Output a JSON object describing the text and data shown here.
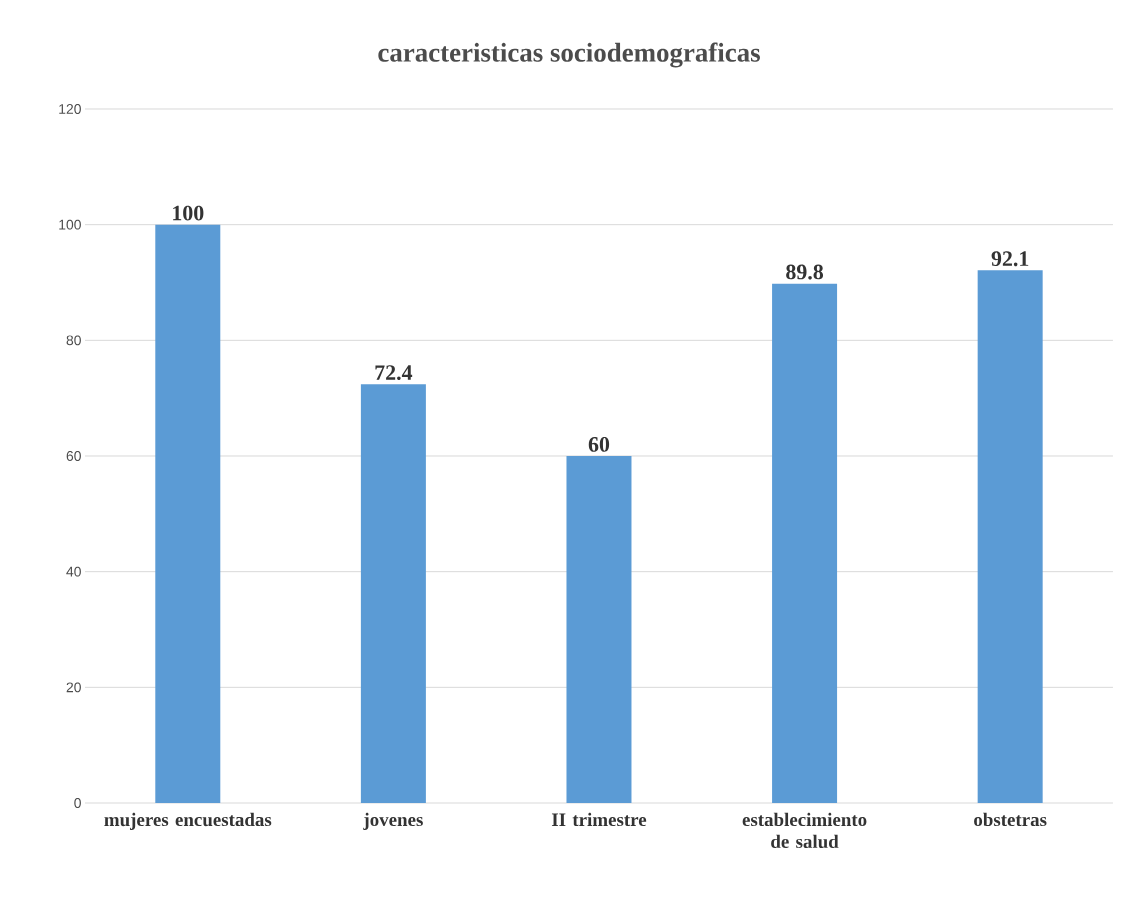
{
  "chart_data": {
    "type": "bar",
    "title": "caracteristicas sociodemograficas",
    "categories": [
      "mujeres encuestadas",
      "jovenes",
      "II trimestre",
      "establecimiento de salud",
      "obstetras"
    ],
    "values": [
      100,
      72.4,
      60,
      89.8,
      92.1
    ],
    "color": "#5b9bd5",
    "ylim": [
      0,
      120
    ],
    "yticks": [
      0,
      20,
      40,
      60,
      80,
      100,
      120
    ],
    "grid": "y",
    "data_labels": true
  }
}
